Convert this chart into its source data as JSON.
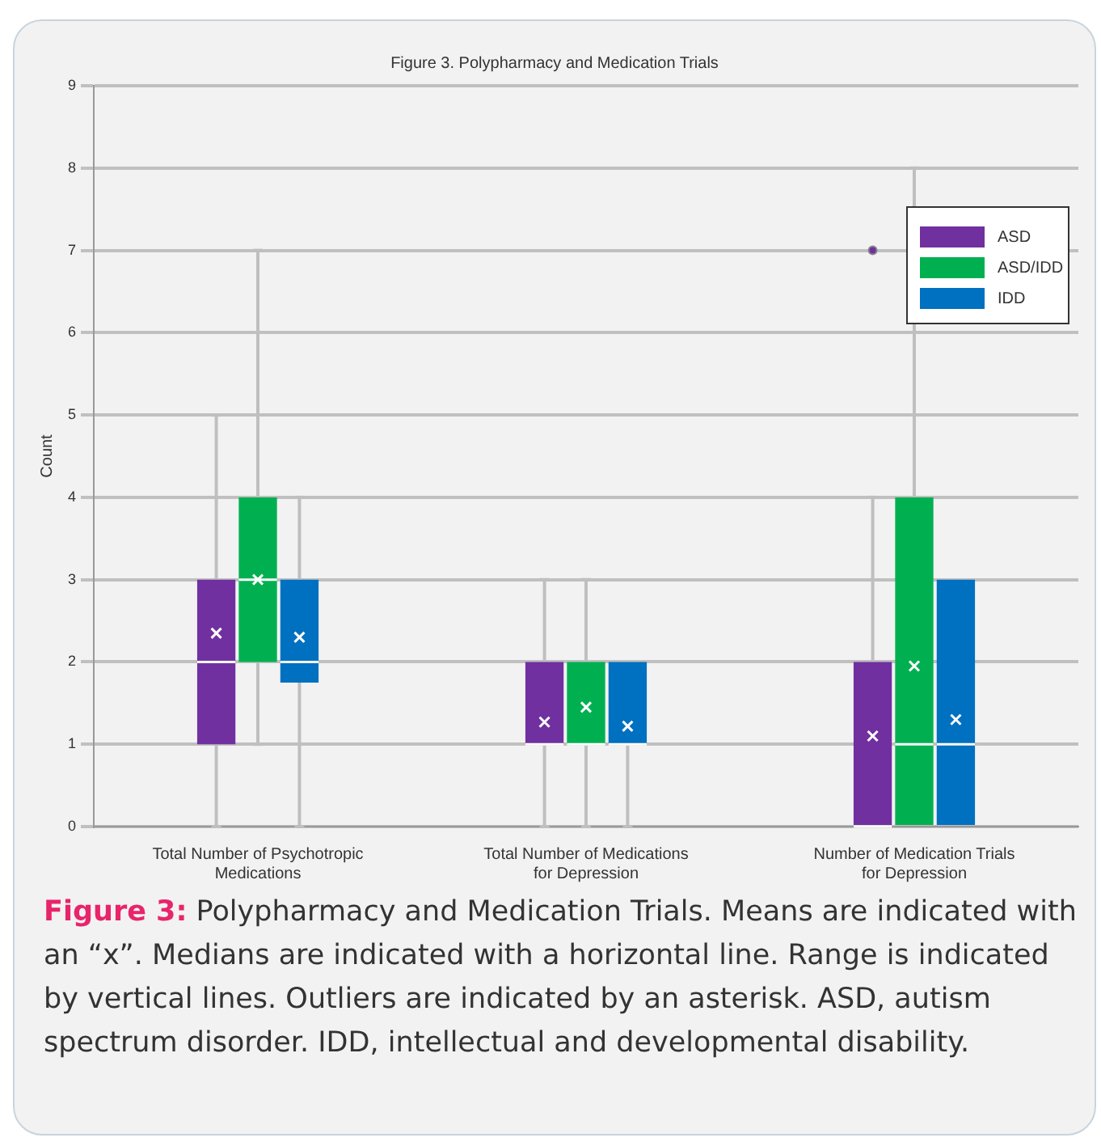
{
  "chart_data": {
    "type": "box",
    "title": "Figure 3. Polypharmacy and Medication Trials",
    "ylabel": "Count",
    "categories": [
      "Total Number of Psychotropic Medications",
      "Total Number of Medications for Depression",
      "Number of Medication Trials for Depression"
    ],
    "series": [
      {
        "name": "ASD",
        "color": "#7030a0",
        "boxes": [
          {
            "low": 0,
            "q1": 1,
            "median": 2,
            "q3": 3,
            "high": 5,
            "mean": 2.35
          },
          {
            "low": 0,
            "q1": 1,
            "median": 1,
            "q3": 2,
            "high": 3,
            "mean": 1.27
          },
          {
            "low": 0,
            "q1": 0,
            "median": 0,
            "q3": 2,
            "high": 4,
            "mean": 1.1,
            "outliers": [
              7
            ]
          }
        ]
      },
      {
        "name": "ASD/IDD",
        "color": "#00b050",
        "boxes": [
          {
            "low": 1,
            "q1": 2,
            "median": 3,
            "q3": 4,
            "high": 7,
            "mean": 3.0
          },
          {
            "low": 0,
            "q1": 1,
            "median": 1,
            "q3": 2,
            "high": 3,
            "mean": 1.45
          },
          {
            "low": 0,
            "q1": 0,
            "median": 1,
            "q3": 4,
            "high": 8,
            "mean": 1.95
          }
        ]
      },
      {
        "name": "IDD",
        "color": "#0070c0",
        "boxes": [
          {
            "low": 0,
            "q1": 1.75,
            "median": 2,
            "q3": 3,
            "high": 4,
            "mean": 2.3
          },
          {
            "low": 0,
            "q1": 1,
            "median": 1,
            "q3": 2,
            "high": 2,
            "mean": 1.22
          },
          {
            "low": 0,
            "q1": 0,
            "median": 1,
            "q3": 3,
            "high": 3,
            "mean": 1.3
          }
        ]
      }
    ],
    "ylim": [
      0,
      9
    ],
    "yticks": [
      0,
      1,
      2,
      3,
      4,
      5,
      6,
      7,
      8,
      9
    ],
    "grid": "y",
    "legend": "top right",
    "marker": "cross",
    "annotations": [
      "Figure 3: Polypharmacy and Medication Trials. Means are indicated with an “x”. Medians are indicated with a horizontal line. Range is indicated by vertical lines. Outliers are indicated by an asterisk. ASD, autism spectrum disorder. IDD, intellectual and developmental disability."
    ]
  }
}
